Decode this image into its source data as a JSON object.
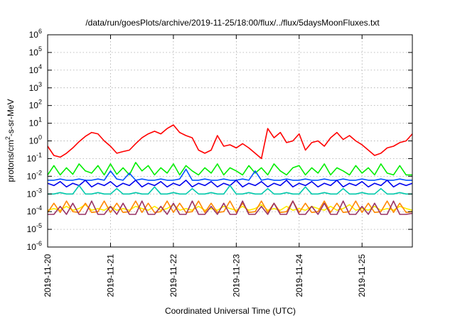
{
  "chart_data": {
    "type": "line",
    "title": "/data/run/goesPlots/archive/2019-11-25/18:00/flux/../flux/5daysMoonFluxes.txt",
    "xlabel": "Coordinated Universal Time (UTC)",
    "ylabel": {
      "prefix": "protons/cm",
      "sup": "2",
      "suffix": "-s-sr-MeV"
    },
    "yscale": "log",
    "ylim": [
      1e-06,
      1000000.0
    ],
    "xlim": [
      0,
      5.8
    ],
    "grid": true,
    "legend": "none",
    "x_ticks": [
      {
        "x": 0,
        "label": "2019-11-20"
      },
      {
        "x": 1,
        "label": "2019-11-21"
      },
      {
        "x": 2,
        "label": "2019-11-22"
      },
      {
        "x": 3,
        "label": "2019-11-23"
      },
      {
        "x": 4,
        "label": "2019-11-24"
      },
      {
        "x": 5,
        "label": "2019-11-25"
      }
    ],
    "y_ticks": [
      {
        "exp": 6,
        "base": "10",
        "sup": "6"
      },
      {
        "exp": 5,
        "base": "10",
        "sup": "5"
      },
      {
        "exp": 4,
        "base": "10",
        "sup": "4"
      },
      {
        "exp": 3,
        "base": "10",
        "sup": "3"
      },
      {
        "exp": 2,
        "base": "10",
        "sup": "2"
      },
      {
        "exp": 1,
        "base": "10",
        "sup": "1"
      },
      {
        "exp": 0,
        "base": "10",
        "sup": "0"
      },
      {
        "exp": -1,
        "base": "10",
        "sup": "-1"
      },
      {
        "exp": -2,
        "base": "10",
        "sup": "-2"
      },
      {
        "exp": -3,
        "base": "10",
        "sup": "-3"
      },
      {
        "exp": -4,
        "base": "10",
        "sup": "-4"
      },
      {
        "exp": -5,
        "base": "10",
        "sup": "-5"
      },
      {
        "exp": -6,
        "base": "10",
        "sup": "-6"
      }
    ],
    "series": [
      {
        "color": "#ff0000",
        "x": [
          0,
          0.1,
          0.2,
          0.3,
          0.4,
          0.5,
          0.6,
          0.7,
          0.8,
          0.9,
          1.0,
          1.1,
          1.2,
          1.3,
          1.4,
          1.5,
          1.6,
          1.7,
          1.8,
          1.9,
          2.0,
          2.1,
          2.2,
          2.3,
          2.4,
          2.5,
          2.6,
          2.7,
          2.8,
          2.9,
          3.0,
          3.1,
          3.2,
          3.3,
          3.4,
          3.5,
          3.6,
          3.7,
          3.8,
          3.9,
          4.0,
          4.1,
          4.2,
          4.3,
          4.4,
          4.5,
          4.6,
          4.7,
          4.8,
          4.9,
          5.0,
          5.1,
          5.2,
          5.3,
          5.4,
          5.5,
          5.6,
          5.7,
          5.8
        ],
        "y": [
          0.5,
          0.15,
          0.12,
          0.2,
          0.4,
          0.9,
          1.8,
          3,
          2.5,
          1,
          0.5,
          0.2,
          0.25,
          0.3,
          0.7,
          1.5,
          2.5,
          3.5,
          2.5,
          5,
          8,
          3,
          2,
          1.5,
          0.3,
          0.2,
          0.3,
          2,
          0.5,
          0.6,
          0.4,
          0.7,
          0.4,
          0.2,
          0.1,
          5,
          1.5,
          3,
          0.8,
          1,
          2.5,
          0.3,
          0.8,
          1,
          0.5,
          1.5,
          3,
          1.2,
          2,
          1,
          0.6,
          0.3,
          0.15,
          0.2,
          0.4,
          0.5,
          0.8,
          1,
          2.5
        ]
      },
      {
        "color": "#00ee00",
        "x": [
          0,
          0.1,
          0.2,
          0.3,
          0.4,
          0.5,
          0.6,
          0.7,
          0.8,
          0.9,
          1.0,
          1.1,
          1.2,
          1.3,
          1.4,
          1.5,
          1.6,
          1.7,
          1.8,
          1.9,
          2.0,
          2.1,
          2.2,
          2.3,
          2.4,
          2.5,
          2.6,
          2.7,
          2.8,
          2.9,
          3.0,
          3.1,
          3.2,
          3.3,
          3.4,
          3.5,
          3.6,
          3.7,
          3.8,
          3.9,
          4.0,
          4.1,
          4.2,
          4.3,
          4.4,
          4.5,
          4.6,
          4.7,
          4.8,
          4.9,
          5.0,
          5.1,
          5.2,
          5.3,
          5.4,
          5.5,
          5.6,
          5.7,
          5.8
        ],
        "y": [
          0.012,
          0.04,
          0.012,
          0.03,
          0.013,
          0.05,
          0.02,
          0.015,
          0.04,
          0.012,
          0.05,
          0.013,
          0.03,
          0.012,
          0.06,
          0.02,
          0.04,
          0.012,
          0.03,
          0.015,
          0.05,
          0.012,
          0.04,
          0.02,
          0.012,
          0.03,
          0.015,
          0.05,
          0.012,
          0.03,
          0.02,
          0.012,
          0.04,
          0.015,
          0.03,
          0.012,
          0.05,
          0.02,
          0.012,
          0.03,
          0.04,
          0.012,
          0.03,
          0.015,
          0.05,
          0.012,
          0.03,
          0.02,
          0.012,
          0.04,
          0.015,
          0.03,
          0.012,
          0.05,
          0.015,
          0.012,
          0.04,
          0.012,
          0.012
        ]
      },
      {
        "color": "#0050ff",
        "x": [
          0,
          0.1,
          0.2,
          0.3,
          0.4,
          0.5,
          0.6,
          0.7,
          0.8,
          0.9,
          1.0,
          1.1,
          1.2,
          1.3,
          1.4,
          1.5,
          1.6,
          1.7,
          1.8,
          1.9,
          2.0,
          2.1,
          2.2,
          2.3,
          2.4,
          2.5,
          2.6,
          2.7,
          2.8,
          2.9,
          3.0,
          3.1,
          3.2,
          3.3,
          3.4,
          3.5,
          3.6,
          3.7,
          3.8,
          3.9,
          4.0,
          4.1,
          4.2,
          4.3,
          4.4,
          4.5,
          4.6,
          4.7,
          4.8,
          4.9,
          5.0,
          5.1,
          5.2,
          5.3,
          5.4,
          5.5,
          5.6,
          5.7,
          5.8
        ],
        "y": [
          0.006,
          0.006,
          0.007,
          0.006,
          0.006,
          0.007,
          0.006,
          0.006,
          0.007,
          0.006,
          0.02,
          0.007,
          0.006,
          0.015,
          0.006,
          0.007,
          0.006,
          0.006,
          0.007,
          0.006,
          0.006,
          0.007,
          0.025,
          0.006,
          0.006,
          0.007,
          0.006,
          0.006,
          0.007,
          0.006,
          0.006,
          0.007,
          0.006,
          0.02,
          0.006,
          0.007,
          0.006,
          0.006,
          0.007,
          0.006,
          0.006,
          0.007,
          0.006,
          0.006,
          0.007,
          0.006,
          0.006,
          0.007,
          0.006,
          0.006,
          0.007,
          0.006,
          0.006,
          0.007,
          0.006,
          0.006,
          0.007,
          0.006,
          0.006
        ]
      },
      {
        "color": "#0000ee",
        "x": [
          0,
          0.1,
          0.2,
          0.3,
          0.4,
          0.5,
          0.6,
          0.7,
          0.8,
          0.9,
          1.0,
          1.1,
          1.2,
          1.3,
          1.4,
          1.5,
          1.6,
          1.7,
          1.8,
          1.9,
          2.0,
          2.1,
          2.2,
          2.3,
          2.4,
          2.5,
          2.6,
          2.7,
          2.8,
          2.9,
          3.0,
          3.1,
          3.2,
          3.3,
          3.4,
          3.5,
          3.6,
          3.7,
          3.8,
          3.9,
          4.0,
          4.1,
          4.2,
          4.3,
          4.4,
          4.5,
          4.6,
          4.7,
          4.8,
          4.9,
          5.0,
          5.1,
          5.2,
          5.3,
          5.4,
          5.5,
          5.6,
          5.7,
          5.8
        ],
        "y": [
          0.004,
          0.003,
          0.005,
          0.0025,
          0.004,
          0.003,
          0.006,
          0.0025,
          0.004,
          0.003,
          0.005,
          0.0025,
          0.004,
          0.003,
          0.006,
          0.0025,
          0.004,
          0.003,
          0.005,
          0.0025,
          0.004,
          0.003,
          0.006,
          0.0025,
          0.004,
          0.003,
          0.005,
          0.0025,
          0.004,
          0.003,
          0.006,
          0.0025,
          0.004,
          0.003,
          0.005,
          0.0025,
          0.004,
          0.003,
          0.006,
          0.0025,
          0.004,
          0.003,
          0.005,
          0.0025,
          0.004,
          0.003,
          0.006,
          0.0025,
          0.004,
          0.003,
          0.005,
          0.0025,
          0.004,
          0.003,
          0.006,
          0.0025,
          0.004,
          0.003,
          0.004
        ]
      },
      {
        "color": "#00c8aa",
        "x": [
          0,
          0.1,
          0.2,
          0.3,
          0.4,
          0.5,
          0.6,
          0.7,
          0.8,
          0.9,
          1.0,
          1.1,
          1.2,
          1.3,
          1.4,
          1.5,
          1.6,
          1.7,
          1.8,
          1.9,
          2.0,
          2.1,
          2.2,
          2.3,
          2.4,
          2.5,
          2.6,
          2.7,
          2.8,
          2.9,
          3.0,
          3.1,
          3.2,
          3.3,
          3.4,
          3.5,
          3.6,
          3.7,
          3.8,
          3.9,
          4.0,
          4.1,
          4.2,
          4.3,
          4.4,
          4.5,
          4.6,
          4.7,
          4.8,
          4.9,
          5.0,
          5.1,
          5.2,
          5.3,
          5.4,
          5.5,
          5.6,
          5.7,
          5.8
        ],
        "y": [
          0.001,
          0.001,
          0.0012,
          0.001,
          0.001,
          0.003,
          0.001,
          0.001,
          0.0012,
          0.001,
          0.001,
          0.002,
          0.001,
          0.001,
          0.0012,
          0.001,
          0.001,
          0.0025,
          0.001,
          0.001,
          0.0012,
          0.001,
          0.001,
          0.002,
          0.001,
          0.001,
          0.0012,
          0.001,
          0.001,
          0.003,
          0.001,
          0.001,
          0.0012,
          0.001,
          0.001,
          0.002,
          0.001,
          0.001,
          0.0012,
          0.001,
          0.001,
          0.0025,
          0.001,
          0.001,
          0.0012,
          0.001,
          0.001,
          0.002,
          0.001,
          0.001,
          0.0012,
          0.001,
          0.001,
          0.002,
          0.001,
          0.001,
          0.0012,
          0.001,
          0.001
        ]
      },
      {
        "color": "#ffee00",
        "x": [
          0,
          0.1,
          0.2,
          0.3,
          0.4,
          0.5,
          0.6,
          0.7,
          0.8,
          0.9,
          1.0,
          1.1,
          1.2,
          1.3,
          1.4,
          1.5,
          1.6,
          1.7,
          1.8,
          1.9,
          2.0,
          2.1,
          2.2,
          2.3,
          2.4,
          2.5,
          2.6,
          2.7,
          2.8,
          2.9,
          3.0,
          3.1,
          3.2,
          3.3,
          3.4,
          3.5,
          3.6,
          3.7,
          3.8,
          3.9,
          4.0,
          4.1,
          4.2,
          4.3,
          4.4,
          4.5,
          4.6,
          4.7,
          4.8,
          4.9,
          5.0,
          5.1,
          5.2,
          5.3,
          5.4,
          5.5,
          5.6,
          5.7,
          5.8
        ],
        "y": [
          0.00012,
          0.00015,
          0.00012,
          0.0002,
          0.00012,
          0.00015,
          0.00025,
          0.00012,
          0.00015,
          0.00012,
          0.0002,
          0.00012,
          0.00015,
          0.00012,
          0.0002,
          0.00015,
          0.00012,
          0.0002,
          0.00012,
          0.00015,
          0.00025,
          0.00012,
          0.00015,
          0.00012,
          0.0002,
          0.00012,
          0.00015,
          0.00012,
          0.0002,
          0.00015,
          0.00012,
          0.0002,
          0.00012,
          0.00015,
          0.00025,
          0.00012,
          0.00015,
          0.00012,
          0.0002,
          0.00012,
          0.00015,
          0.00012,
          0.0002,
          0.00015,
          0.00012,
          0.0002,
          0.00012,
          0.00015,
          0.00025,
          0.00012,
          0.00015,
          0.00012,
          0.0002,
          0.00012,
          0.00015,
          0.00012,
          0.0002,
          0.00015,
          0.00012
        ]
      },
      {
        "color": "#ff8800",
        "x": [
          0,
          0.1,
          0.2,
          0.3,
          0.4,
          0.5,
          0.6,
          0.7,
          0.8,
          0.9,
          1.0,
          1.1,
          1.2,
          1.3,
          1.4,
          1.5,
          1.6,
          1.7,
          1.8,
          1.9,
          2.0,
          2.1,
          2.2,
          2.3,
          2.4,
          2.5,
          2.6,
          2.7,
          2.8,
          2.9,
          3.0,
          3.1,
          3.2,
          3.3,
          3.4,
          3.5,
          3.6,
          3.7,
          3.8,
          3.9,
          4.0,
          4.1,
          4.2,
          4.3,
          4.4,
          4.5,
          4.6,
          4.7,
          4.8,
          4.9,
          5.0,
          5.1,
          5.2,
          5.3,
          5.4,
          5.5,
          5.6,
          5.7,
          5.8
        ],
        "y": [
          9e-05,
          0.0003,
          9e-05,
          0.0004,
          0.0001,
          9e-05,
          0.0003,
          9e-05,
          0.0001,
          0.0004,
          9e-05,
          0.0003,
          9e-05,
          0.0001,
          0.0004,
          9e-05,
          0.0003,
          9e-05,
          0.0001,
          0.0004,
          9e-05,
          0.0003,
          9e-05,
          0.0001,
          0.0004,
          9e-05,
          0.0003,
          9e-05,
          0.0001,
          0.0004,
          9e-05,
          0.0003,
          9e-05,
          0.0001,
          0.0004,
          9e-05,
          0.0003,
          9e-05,
          0.0001,
          0.0004,
          9e-05,
          0.0003,
          9e-05,
          0.0001,
          0.0004,
          9e-05,
          0.0003,
          9e-05,
          0.0001,
          0.0004,
          9e-05,
          0.0003,
          9e-05,
          0.0001,
          0.0004,
          9e-05,
          0.0003,
          9e-05,
          0.0001
        ]
      },
      {
        "color": "#993366",
        "x": [
          0,
          0.1,
          0.2,
          0.3,
          0.4,
          0.5,
          0.6,
          0.7,
          0.8,
          0.9,
          1.0,
          1.1,
          1.2,
          1.3,
          1.4,
          1.5,
          1.6,
          1.7,
          1.8,
          1.9,
          2.0,
          2.1,
          2.2,
          2.3,
          2.4,
          2.5,
          2.6,
          2.7,
          2.8,
          2.9,
          3.0,
          3.1,
          3.2,
          3.3,
          3.4,
          3.5,
          3.6,
          3.7,
          3.8,
          3.9,
          4.0,
          4.1,
          4.2,
          4.3,
          4.4,
          4.5,
          4.6,
          4.7,
          4.8,
          4.9,
          5.0,
          5.1,
          5.2,
          5.3,
          5.4,
          5.5,
          5.6,
          5.7,
          5.8
        ],
        "y": [
          7e-05,
          7e-05,
          0.0002,
          7e-05,
          0.0003,
          7e-05,
          7e-05,
          0.0004,
          7e-05,
          7e-05,
          0.0002,
          7e-05,
          0.0003,
          7e-05,
          7e-05,
          0.0004,
          7e-05,
          7e-05,
          0.0002,
          7e-05,
          0.0003,
          7e-05,
          7e-05,
          0.0004,
          7e-05,
          7e-05,
          0.0002,
          7e-05,
          0.0003,
          7e-05,
          7e-05,
          0.0004,
          7e-05,
          7e-05,
          0.0002,
          7e-05,
          0.0003,
          7e-05,
          7e-05,
          0.0004,
          7e-05,
          7e-05,
          0.0002,
          7e-05,
          0.0003,
          7e-05,
          7e-05,
          0.0004,
          7e-05,
          7e-05,
          0.0002,
          7e-05,
          0.0003,
          7e-05,
          7e-05,
          0.0004,
          7e-05,
          7e-05,
          8e-05
        ]
      }
    ]
  }
}
